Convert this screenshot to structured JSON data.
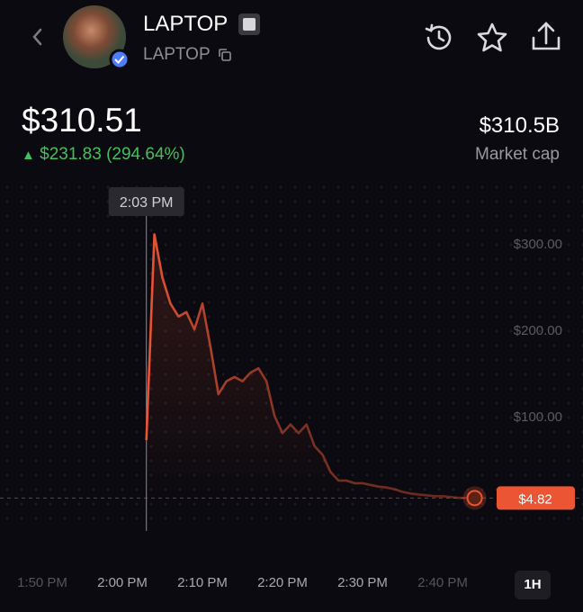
{
  "header": {
    "title": "LAPTOP",
    "symbol": "LAPTOP"
  },
  "stats": {
    "price": "$310.51",
    "change": "$231.83 (294.64%)",
    "market_cap": "$310.5B",
    "market_cap_label": "Market cap",
    "timeframe": "1H"
  },
  "chart_data": {
    "type": "line",
    "x": [
      "2:03 PM",
      "2:04 PM",
      "2:05 PM",
      "2:06 PM",
      "2:07 PM",
      "2:08 PM",
      "2:09 PM",
      "2:10 PM",
      "2:11 PM",
      "2:12 PM",
      "2:13 PM",
      "2:14 PM",
      "2:15 PM",
      "2:16 PM",
      "2:17 PM",
      "2:18 PM",
      "2:19 PM",
      "2:20 PM",
      "2:21 PM",
      "2:22 PM",
      "2:23 PM",
      "2:24 PM",
      "2:25 PM",
      "2:26 PM",
      "2:27 PM",
      "2:28 PM",
      "2:29 PM",
      "2:30 PM",
      "2:31 PM",
      "2:32 PM",
      "2:33 PM",
      "2:34 PM",
      "2:35 PM",
      "2:36 PM",
      "2:37 PM",
      "2:38 PM",
      "2:39 PM",
      "2:40 PM",
      "2:41 PM",
      "2:42 PM",
      "2:43 PM",
      "2:44 PM"
    ],
    "values": [
      72,
      310,
      260,
      230,
      215,
      220,
      200,
      230,
      180,
      125,
      140,
      145,
      140,
      150,
      155,
      140,
      100,
      80,
      90,
      80,
      90,
      65,
      55,
      35,
      25,
      25,
      22,
      22,
      20,
      18,
      17,
      15,
      12,
      10,
      9,
      8,
      7,
      7,
      6,
      5,
      5,
      4.82
    ],
    "color": "#ec5533",
    "last_value_label": "$4.82",
    "crosshair_label": "2:03 PM",
    "xlim": [
      "1:45 PM",
      "2:50 PM"
    ],
    "xticks": [
      "1:50 PM",
      "2:00 PM",
      "2:10 PM",
      "2:20 PM",
      "2:30 PM",
      "2:40 PM"
    ],
    "ylim": [
      0,
      362
    ],
    "yticks": [
      {
        "value": 100,
        "label": "$100.00"
      },
      {
        "value": 200,
        "label": "$200.00"
      },
      {
        "value": 300,
        "label": "$300.00"
      }
    ]
  }
}
